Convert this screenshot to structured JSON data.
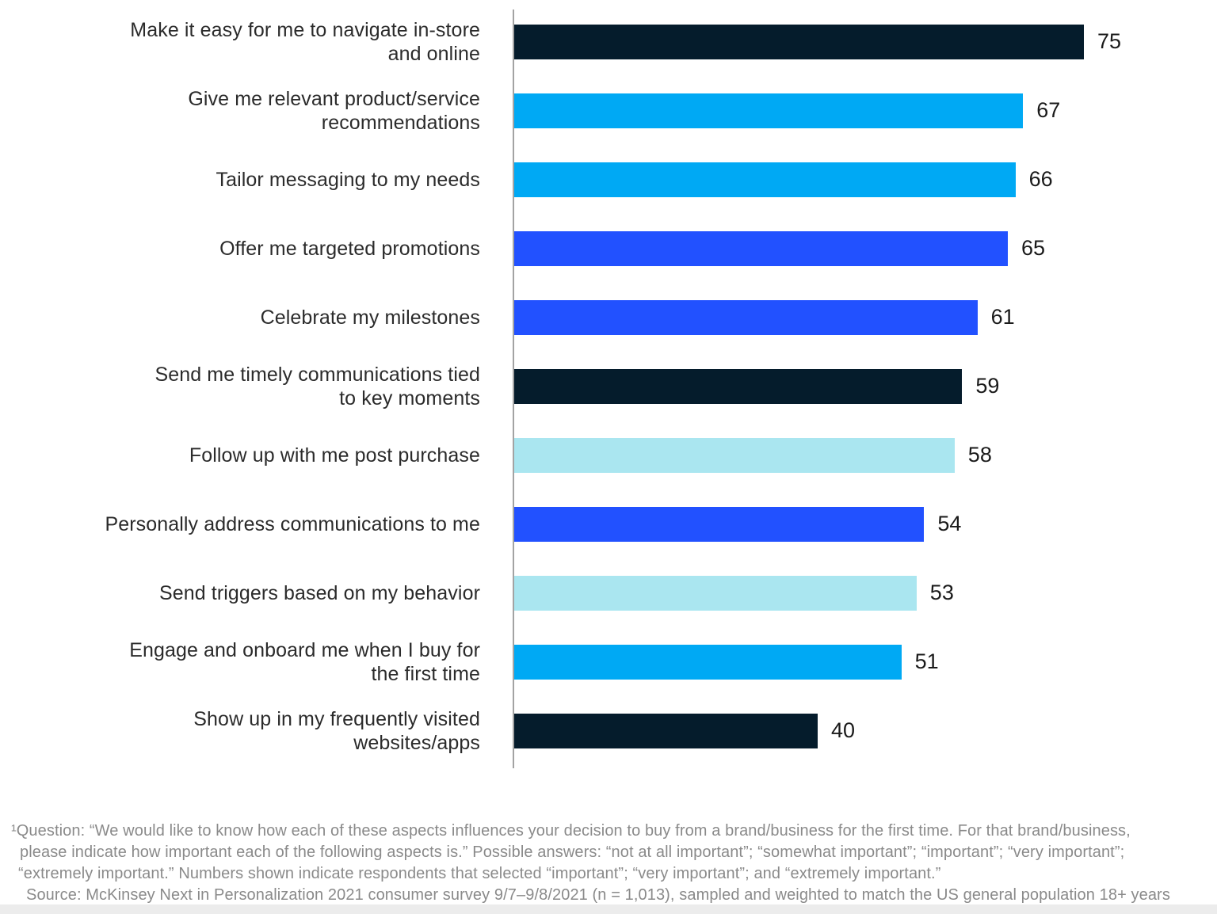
{
  "palette": {
    "dark_navy": "#051C2C",
    "cyan": "#00A9F4",
    "blue": "#2251FF",
    "pale_cyan": "#AAE6F0",
    "axis": "#A3A3A3",
    "label_text": "#2B2B2B",
    "value_text": "#1A1A1A",
    "footnote_text": "#8A8A8A",
    "bottom_strip": "#ECECEC"
  },
  "chart_data": {
    "type": "bar",
    "orientation": "horizontal",
    "title": "",
    "xlabel": "",
    "ylabel": "",
    "grid": false,
    "legend": false,
    "axis": {
      "max": 75,
      "baseline_visible": true
    },
    "categories": [
      "Make it easy for me to navigate in-store\nand online",
      "Give me relevant product/service\nrecommendations",
      "Tailor messaging to my needs",
      "Offer me targeted promotions",
      "Celebrate my milestones",
      "Send me timely communications tied\nto key moments",
      "Follow up with me post purchase",
      "Personally address communications to me",
      "Send triggers based on my behavior",
      "Engage and onboard me when I buy for\nthe first time",
      "Show up in my frequently visited\nwebsites/apps"
    ],
    "values": [
      75,
      67,
      66,
      65,
      61,
      59,
      58,
      54,
      53,
      51,
      40
    ],
    "color_keys": [
      "dark_navy",
      "cyan",
      "cyan",
      "blue",
      "blue",
      "dark_navy",
      "pale_cyan",
      "blue",
      "pale_cyan",
      "cyan",
      "dark_navy"
    ]
  },
  "footnote": {
    "lines": [
      "¹Question: “We would like to know how each of these aspects influences your decision to buy from a brand/business for the first time. For that brand/business,",
      "please indicate how important each of the following aspects is.” Possible answers: “not at all important”; “somewhat important”; “important”; “very important”;",
      "“extremely important.” Numbers shown indicate respondents that selected “important”; “very important”; and “extremely important.”",
      "Source: McKinsey Next in Personalization 2021 consumer survey 9/7–9/8/2021 (n = 1,013), sampled and weighted to match the US general population 18+ years"
    ]
  }
}
